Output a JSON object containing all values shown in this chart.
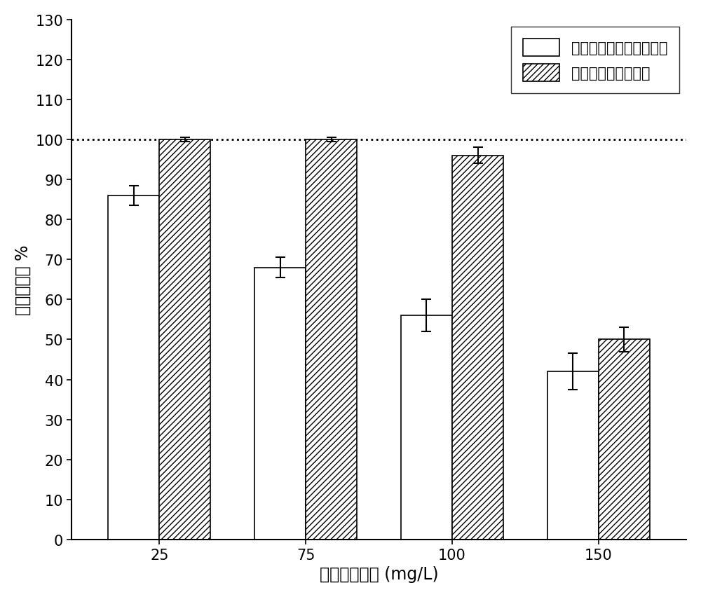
{
  "categories": [
    "25",
    "75",
    "100",
    "150"
  ],
  "xlabel": "进水总酚浓度 (mg/L)",
  "ylabel": "总酚降解率 %",
  "ylim": [
    0,
    130
  ],
  "yticks": [
    0,
    10,
    20,
    30,
    40,
    50,
    60,
    70,
    80,
    90,
    100,
    110,
    120,
    130
  ],
  "bar_width": 0.35,
  "white_bar_values": [
    86,
    68,
    56,
    42
  ],
  "white_bar_errors": [
    2.5,
    2.5,
    4.0,
    4.5
  ],
  "hatch_bar_values": [
    100,
    100,
    96,
    50
  ],
  "hatch_bar_errors": [
    0.5,
    0.5,
    2.0,
    3.0
  ],
  "legend_labels": [
    "固定化厌氧生物膜反应器",
    "固定化小球藻反应器"
  ],
  "dotted_line_y": 100,
  "bar_edge_color": "#000000",
  "white_bar_color": "#ffffff",
  "hatch_bar_color": "#ffffff",
  "hatch_pattern": "////",
  "figure_width": 10.0,
  "figure_height": 8.53,
  "background_color": "#ffffff",
  "font_size_axis_label": 17,
  "font_size_tick_label": 15,
  "font_size_legend": 15
}
